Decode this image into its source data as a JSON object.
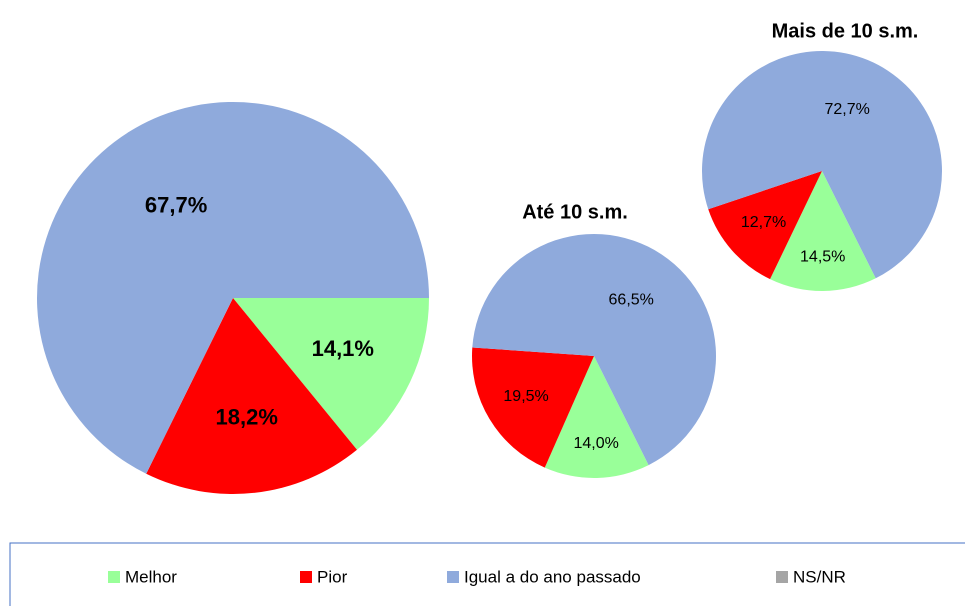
{
  "chart_data": [
    {
      "type": "pie",
      "categories": [
        "Melhor",
        "Pior",
        "Igual a do ano passado"
      ],
      "colors": [
        "#99ff99",
        "#ff0000",
        "#8faadc"
      ],
      "values": [
        14.1,
        18.2,
        67.7
      ],
      "value_labels": [
        "14,1%",
        "18,2%",
        "67,7%"
      ]
    },
    {
      "type": "pie",
      "title": "Até 10 s.m.",
      "categories": [
        "Melhor",
        "Pior",
        "Igual a do ano passado"
      ],
      "colors": [
        "#99ff99",
        "#ff0000",
        "#8faadc"
      ],
      "values": [
        14.0,
        19.5,
        66.5
      ],
      "value_labels": [
        "14,0%",
        "19,5%",
        "66,5%"
      ]
    },
    {
      "type": "pie",
      "title": "Mais de 10 s.m.",
      "categories": [
        "Melhor",
        "Pior",
        "Igual a do ano passado"
      ],
      "colors": [
        "#99ff99",
        "#ff0000",
        "#8faadc"
      ],
      "values": [
        14.5,
        12.7,
        72.7
      ],
      "value_labels": [
        "14,5%",
        "12,7%",
        "72,7%"
      ]
    }
  ],
  "legend": {
    "items": [
      {
        "name": "Melhor",
        "color": "#99ff99"
      },
      {
        "name": "Pior",
        "color": "#ff0000"
      },
      {
        "name": "Igual a do ano passado",
        "color": "#8faadc"
      },
      {
        "name": "NS/NR",
        "color": "#a5a5a5"
      }
    ]
  }
}
